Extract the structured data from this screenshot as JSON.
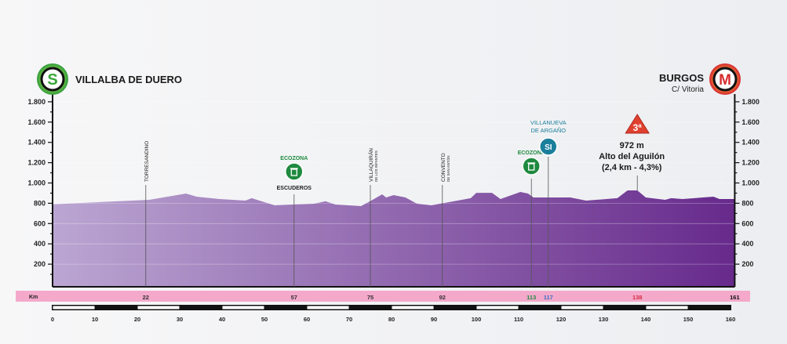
{
  "start": {
    "icon": "start-S",
    "letter": "S",
    "name": "VILLALBA DE DUERO"
  },
  "finish": {
    "icon": "finish-M",
    "letter": "M",
    "name": "BURGOS",
    "sub": "C/ Vitoria"
  },
  "colors": {
    "profile_start": "#bba6d2",
    "profile_end": "#672a8c",
    "km_band": "#f4a9cb",
    "ecozona": "#1f8a3f",
    "sprint": "#1b7f9c",
    "climb": "#e0402e"
  },
  "chart_data": {
    "type": "area",
    "xlabel": "Km",
    "ylim": [
      0,
      1800
    ],
    "xlim": [
      0,
      161
    ],
    "y_ticks": [
      200,
      400,
      600,
      800,
      1000,
      1200,
      1400,
      1600,
      1800
    ],
    "y_tick_labels": [
      "200",
      "400",
      "600",
      "800",
      "1.000",
      "1.200",
      "1.400",
      "1.600",
      "1.800"
    ],
    "x_ticks": [
      0,
      10,
      20,
      30,
      40,
      50,
      60,
      70,
      80,
      90,
      100,
      110,
      120,
      130,
      140,
      150,
      160
    ],
    "grid": true,
    "profile": [
      [
        0,
        790
      ],
      [
        22.8,
        834
      ],
      [
        31.5,
        896
      ],
      [
        34,
        865
      ],
      [
        39.4,
        842
      ],
      [
        45.5,
        826
      ],
      [
        47,
        850
      ],
      [
        50,
        811
      ],
      [
        52.4,
        780
      ],
      [
        56.7,
        788
      ],
      [
        61.7,
        795
      ],
      [
        64.4,
        819
      ],
      [
        66.7,
        788
      ],
      [
        72.8,
        772
      ],
      [
        75.2,
        826
      ],
      [
        77.8,
        888
      ],
      [
        78.7,
        857
      ],
      [
        80.5,
        880
      ],
      [
        83.3,
        857
      ],
      [
        86,
        795
      ],
      [
        89.4,
        780
      ],
      [
        98.7,
        850
      ],
      [
        100,
        903
      ],
      [
        103.7,
        903
      ],
      [
        105.7,
        842
      ],
      [
        110.4,
        911
      ],
      [
        112.2,
        896
      ],
      [
        113.5,
        857
      ],
      [
        122.2,
        857
      ],
      [
        125.9,
        826
      ],
      [
        133.3,
        850
      ],
      [
        135.7,
        927
      ],
      [
        138,
        927
      ],
      [
        140,
        857
      ],
      [
        144.6,
        834
      ],
      [
        146,
        850
      ],
      [
        148.7,
        842
      ],
      [
        156,
        865
      ],
      [
        157.4,
        842
      ],
      [
        161,
        842
      ]
    ],
    "km_markers": [
      {
        "km": "22",
        "color": "#333333"
      },
      {
        "km": "57",
        "color": "#333333"
      },
      {
        "km": "75",
        "color": "#333333"
      },
      {
        "km": "92",
        "color": "#333333"
      },
      {
        "km": "113",
        "color": "#1f8a3f"
      },
      {
        "km": "117",
        "color": "#3a6fc0"
      },
      {
        "km": "138",
        "color": "#d62d3f"
      },
      {
        "km": "161",
        "color": "#111111"
      }
    ],
    "points": [
      {
        "km": 22,
        "type": "town",
        "label": "TORRESANDINO",
        "label2": ""
      },
      {
        "km": 57,
        "type": "ecozona",
        "label": "ECOZONA",
        "label2": "ESCUDEROS"
      },
      {
        "km": 75,
        "type": "town",
        "label": "VILLAQUIRÁN",
        "label2": "DE LOS INFANTES"
      },
      {
        "km": 92,
        "type": "town",
        "label": "CONVENTO",
        "label2": "DE SAN ANTÓN"
      },
      {
        "km": 113,
        "type": "ecozona",
        "label": "ECOZONA",
        "label2": ""
      },
      {
        "km": 117,
        "type": "sprint",
        "label": "VILLANUEVA",
        "label2": "DE ARGAÑO",
        "badge": "SI"
      },
      {
        "km": 138,
        "type": "climb",
        "category": "3ª",
        "altitude": "972 m",
        "name": "Alto del Aguilón",
        "detail": "(2,4 km - 4,3%)"
      }
    ]
  }
}
